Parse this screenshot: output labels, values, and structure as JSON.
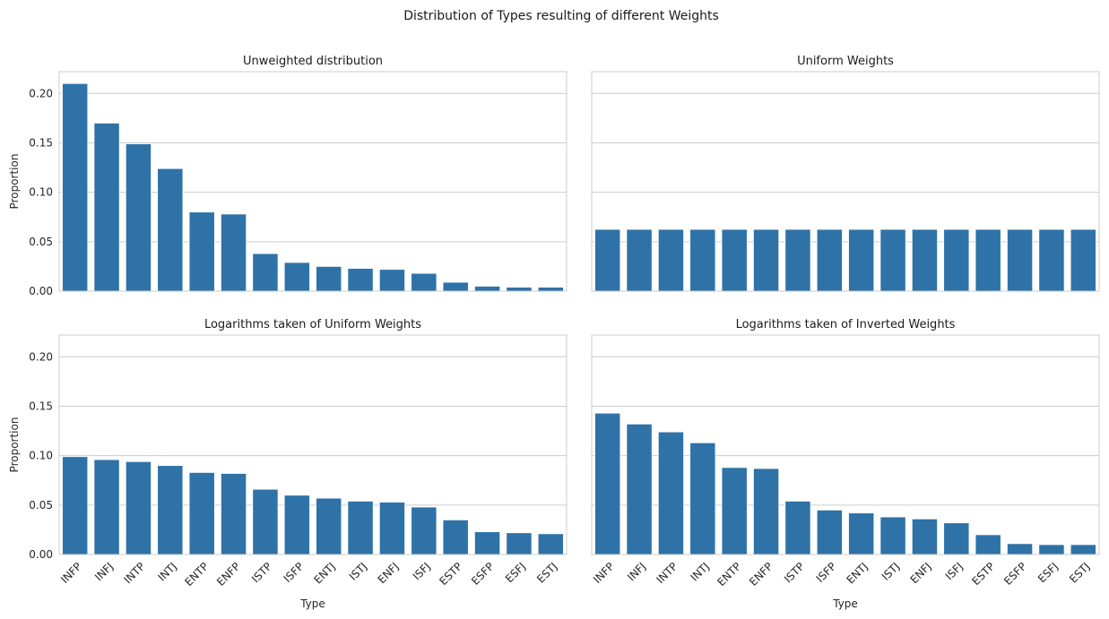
{
  "figure": {
    "title": "Distribution of Types resulting of different Weights"
  },
  "chart_data": [
    {
      "type": "bar",
      "title": "Unweighted distribution",
      "xlabel": "",
      "ylabel": "Proportion",
      "color": "#2e72a8",
      "grid": "horizontal",
      "ylim": [
        0,
        0.222
      ],
      "yticks": [
        "0.00",
        "0.05",
        "0.10",
        "0.15",
        "0.20"
      ],
      "categories": [
        "INFP",
        "INFJ",
        "INTP",
        "INTJ",
        "ENTP",
        "ENFP",
        "ISTP",
        "ISFP",
        "ENTJ",
        "ISTJ",
        "ENFJ",
        "ISFJ",
        "ESTP",
        "ESFP",
        "ESFJ",
        "ESTJ"
      ],
      "values": [
        0.21,
        0.17,
        0.149,
        0.124,
        0.08,
        0.078,
        0.038,
        0.029,
        0.025,
        0.023,
        0.022,
        0.018,
        0.009,
        0.005,
        0.004,
        0.004
      ],
      "show_yticklabels": true,
      "show_xticklabels": false
    },
    {
      "type": "bar",
      "title": "Uniform Weights",
      "xlabel": "",
      "ylabel": "",
      "color": "#2e72a8",
      "grid": "horizontal",
      "ylim": [
        0,
        0.222
      ],
      "yticks": [
        "0.00",
        "0.05",
        "0.10",
        "0.15",
        "0.20"
      ],
      "categories": [
        "INFP",
        "INFJ",
        "INTP",
        "INTJ",
        "ENTP",
        "ENFP",
        "ISTP",
        "ISFP",
        "ENTJ",
        "ISTJ",
        "ENFJ",
        "ISFJ",
        "ESTP",
        "ESFP",
        "ESFJ",
        "ESTJ"
      ],
      "values": [
        0.0625,
        0.0625,
        0.0625,
        0.0625,
        0.0625,
        0.0625,
        0.0625,
        0.0625,
        0.0625,
        0.0625,
        0.0625,
        0.0625,
        0.0625,
        0.0625,
        0.0625,
        0.0625
      ],
      "show_yticklabels": false,
      "show_xticklabels": false
    },
    {
      "type": "bar",
      "title": "Logarithms taken of Uniform Weights",
      "xlabel": "Type",
      "ylabel": "Proportion",
      "color": "#2e72a8",
      "grid": "horizontal",
      "ylim": [
        0,
        0.222
      ],
      "yticks": [
        "0.00",
        "0.05",
        "0.10",
        "0.15",
        "0.20"
      ],
      "categories": [
        "INFP",
        "INFJ",
        "INTP",
        "INTJ",
        "ENTP",
        "ENFP",
        "ISTP",
        "ISFP",
        "ENTJ",
        "ISTJ",
        "ENFJ",
        "ISFJ",
        "ESTP",
        "ESFP",
        "ESFJ",
        "ESTJ"
      ],
      "values": [
        0.099,
        0.096,
        0.094,
        0.09,
        0.083,
        0.082,
        0.066,
        0.06,
        0.057,
        0.054,
        0.053,
        0.048,
        0.035,
        0.023,
        0.022,
        0.021
      ],
      "show_yticklabels": true,
      "show_xticklabels": true
    },
    {
      "type": "bar",
      "title": "Logarithms taken of Inverted Weights",
      "xlabel": "Type",
      "ylabel": "",
      "color": "#2e72a8",
      "grid": "horizontal",
      "ylim": [
        0,
        0.222
      ],
      "yticks": [
        "0.00",
        "0.05",
        "0.10",
        "0.15",
        "0.20"
      ],
      "categories": [
        "INFP",
        "INFJ",
        "INTP",
        "INTJ",
        "ENTP",
        "ENFP",
        "ISTP",
        "ISFP",
        "ENTJ",
        "ISTJ",
        "ENFJ",
        "ISFJ",
        "ESTP",
        "ESFP",
        "ESFJ",
        "ESTJ"
      ],
      "values": [
        0.143,
        0.132,
        0.124,
        0.113,
        0.088,
        0.087,
        0.054,
        0.045,
        0.042,
        0.038,
        0.036,
        0.032,
        0.02,
        0.011,
        0.01,
        0.01
      ],
      "show_yticklabels": false,
      "show_xticklabels": true
    }
  ]
}
